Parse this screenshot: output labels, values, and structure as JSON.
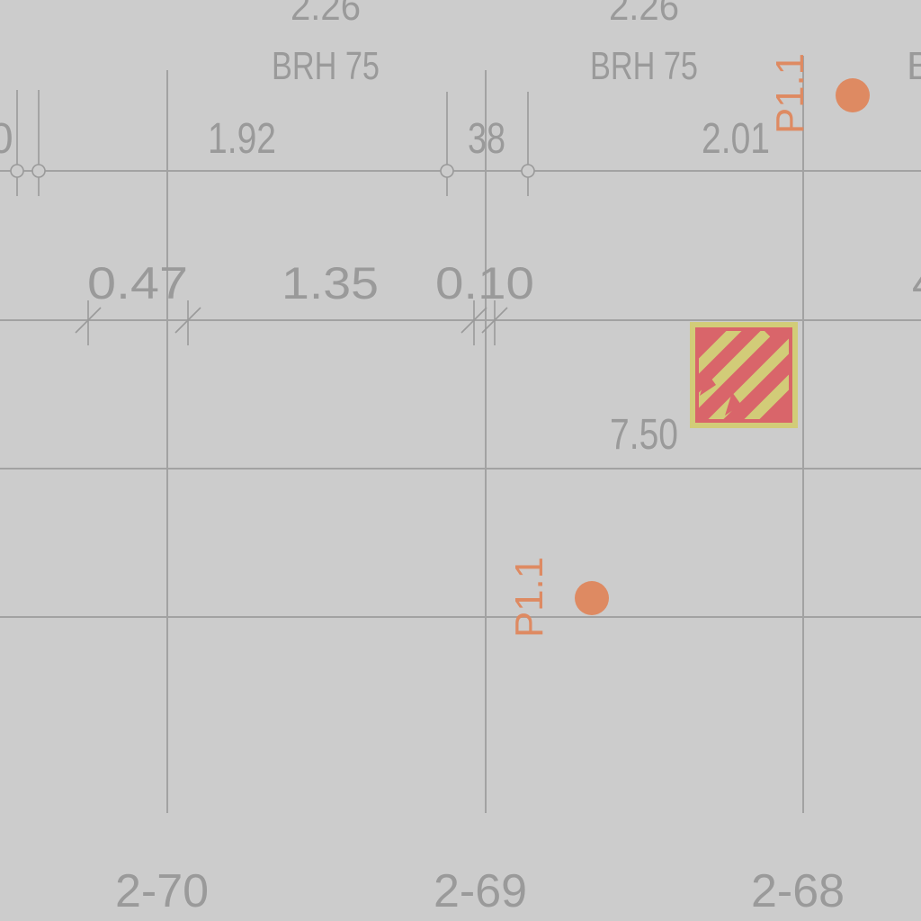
{
  "drawing": {
    "top_values": {
      "left": "2.26",
      "right": "2.26"
    },
    "brh_labels": {
      "left": "BRH 75",
      "right": "BRH 75",
      "edge": "B"
    },
    "dimension_row_1": {
      "edge": "0",
      "a": "1.92",
      "b": "38",
      "c": "2.01"
    },
    "dimension_row_2": {
      "a": "0.47",
      "b": "1.35",
      "c": "0.10",
      "edge": "4"
    },
    "symbol_value": "7.50",
    "markers": [
      {
        "label": "P1.1"
      },
      {
        "label": "P1.1"
      }
    ],
    "axis_labels": [
      "2-70",
      "2-69",
      "2-68"
    ],
    "colors": {
      "background": "#cccccc",
      "lines": "#a2a2a2",
      "text": "#9a9a9a",
      "marker": "#de8a62",
      "symbol_fill": "#d9656a",
      "symbol_accent": "#d2cc78"
    },
    "symbol_icon": "diagonal-arrows-hatched-square"
  }
}
